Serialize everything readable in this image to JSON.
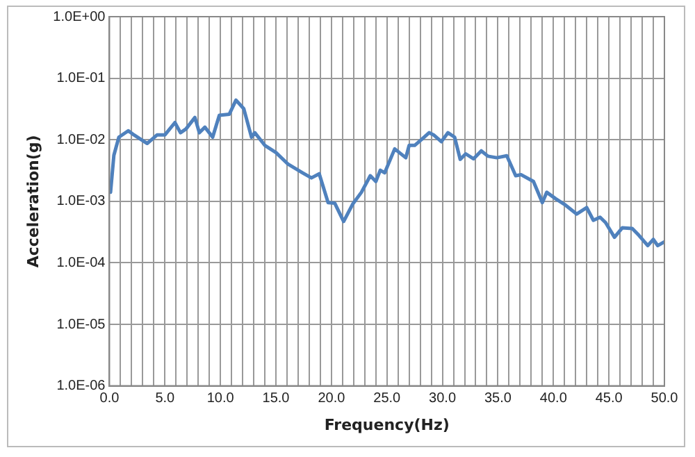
{
  "chart_data": {
    "type": "line",
    "xlabel": "Frequency(Hz)",
    "ylabel": "Acceleration(g)",
    "log": "y",
    "grid": true,
    "legend": false,
    "marker": "none",
    "line_style": "solid",
    "xlim": [
      0,
      50
    ],
    "ylim": [
      1e-06,
      1
    ],
    "xticks": [
      {
        "value": 0,
        "label": "0.0"
      },
      {
        "value": 1,
        "label": null
      },
      {
        "value": 2,
        "label": null
      },
      {
        "value": 3,
        "label": null
      },
      {
        "value": 4,
        "label": null
      },
      {
        "value": 5,
        "label": "5.0"
      },
      {
        "value": 6,
        "label": null
      },
      {
        "value": 7,
        "label": null
      },
      {
        "value": 8,
        "label": null
      },
      {
        "value": 9,
        "label": null
      },
      {
        "value": 10,
        "label": "10.0"
      },
      {
        "value": 11,
        "label": null
      },
      {
        "value": 12,
        "label": null
      },
      {
        "value": 13,
        "label": null
      },
      {
        "value": 14,
        "label": null
      },
      {
        "value": 15,
        "label": "15.0"
      },
      {
        "value": 16,
        "label": null
      },
      {
        "value": 17,
        "label": null
      },
      {
        "value": 18,
        "label": null
      },
      {
        "value": 19,
        "label": null
      },
      {
        "value": 20,
        "label": "20.0"
      },
      {
        "value": 21,
        "label": null
      },
      {
        "value": 22,
        "label": null
      },
      {
        "value": 23,
        "label": null
      },
      {
        "value": 24,
        "label": null
      },
      {
        "value": 25,
        "label": "25.0"
      },
      {
        "value": 26,
        "label": null
      },
      {
        "value": 27,
        "label": null
      },
      {
        "value": 28,
        "label": null
      },
      {
        "value": 29,
        "label": null
      },
      {
        "value": 30,
        "label": "30.0"
      },
      {
        "value": 31,
        "label": null
      },
      {
        "value": 32,
        "label": null
      },
      {
        "value": 33,
        "label": null
      },
      {
        "value": 34,
        "label": null
      },
      {
        "value": 35,
        "label": "35.0"
      },
      {
        "value": 36,
        "label": null
      },
      {
        "value": 37,
        "label": null
      },
      {
        "value": 38,
        "label": null
      },
      {
        "value": 39,
        "label": null
      },
      {
        "value": 40,
        "label": "40.0"
      },
      {
        "value": 41,
        "label": null
      },
      {
        "value": 42,
        "label": null
      },
      {
        "value": 43,
        "label": null
      },
      {
        "value": 44,
        "label": null
      },
      {
        "value": 45,
        "label": "45.0"
      },
      {
        "value": 46,
        "label": null
      },
      {
        "value": 47,
        "label": null
      },
      {
        "value": 48,
        "label": null
      },
      {
        "value": 49,
        "label": null
      },
      {
        "value": 50,
        "label": "50.0"
      }
    ],
    "yticks": [
      {
        "value": 1e-06,
        "label": "1.0E-06"
      },
      {
        "value": 1e-05,
        "label": "1.0E-05"
      },
      {
        "value": 0.0001,
        "label": "1.0E-04"
      },
      {
        "value": 0.001,
        "label": "1.0E-03"
      },
      {
        "value": 0.01,
        "label": "1.0E-02"
      },
      {
        "value": 0.1,
        "label": "1.0E-01"
      },
      {
        "value": 1,
        "label": "1.0E+00"
      }
    ],
    "series": [
      {
        "color": "#4f81bd",
        "x": [
          0.1,
          0.4,
          0.85,
          1.7,
          2.2,
          3.4,
          4.3,
          5.0,
          5.9,
          6.4,
          6.9,
          7.7,
          8.1,
          8.6,
          9.3,
          9.9,
          10.8,
          11.4,
          12.1,
          12.8,
          13.1,
          14.0,
          15.0,
          16.1,
          17.4,
          18.2,
          18.9,
          19.7,
          20.3,
          21.1,
          21.9,
          22.7,
          23.5,
          24.0,
          24.4,
          24.8,
          25.7,
          26.7,
          27.0,
          27.5,
          28.1,
          28.8,
          29.2,
          29.9,
          30.5,
          31.1,
          31.6,
          32.1,
          32.8,
          33.5,
          34.1,
          34.9,
          35.8,
          36.6,
          37.1,
          38.2,
          39.0,
          39.4,
          40.2,
          41.0,
          42.1,
          43.0,
          43.6,
          44.2,
          44.7,
          45.5,
          46.2,
          47.1,
          47.7,
          48.5,
          49.0,
          49.4,
          50.0
        ],
        "values": [
          0.0014,
          0.0056,
          0.011,
          0.014,
          0.012,
          0.0087,
          0.012,
          0.012,
          0.019,
          0.013,
          0.015,
          0.023,
          0.013,
          0.016,
          0.011,
          0.025,
          0.026,
          0.044,
          0.032,
          0.011,
          0.013,
          0.0081,
          0.0062,
          0.004,
          0.0029,
          0.0024,
          0.0028,
          0.00095,
          0.00093,
          0.00047,
          0.00089,
          0.0014,
          0.0026,
          0.0021,
          0.0032,
          0.0029,
          0.0071,
          0.0051,
          0.0081,
          0.0081,
          0.01,
          0.013,
          0.012,
          0.0093,
          0.013,
          0.011,
          0.0048,
          0.0059,
          0.0049,
          0.0066,
          0.0054,
          0.0051,
          0.0055,
          0.0026,
          0.0027,
          0.0021,
          0.00095,
          0.0014,
          0.0011,
          0.00089,
          0.00062,
          0.00079,
          0.00049,
          0.00055,
          0.00045,
          0.00026,
          0.00037,
          0.00036,
          0.00028,
          0.00019,
          0.00024,
          0.00019,
          0.00022
        ]
      }
    ]
  }
}
